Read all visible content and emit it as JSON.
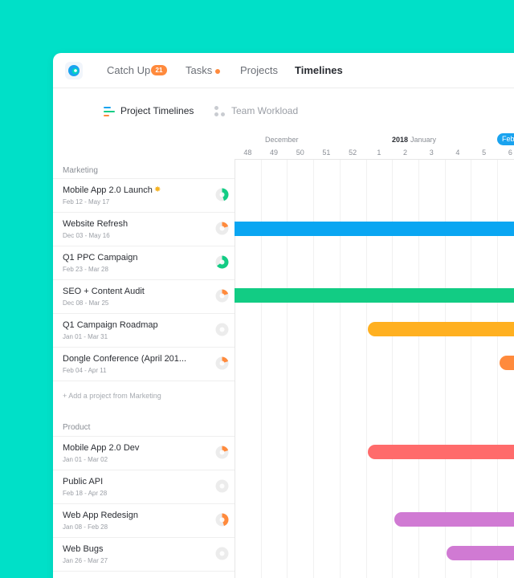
{
  "header": {
    "nav": [
      {
        "label": "Catch Up",
        "badge": "21"
      },
      {
        "label": "Tasks"
      },
      {
        "label": "Projects"
      },
      {
        "label": "Timelines"
      }
    ]
  },
  "view_tabs": {
    "project_timelines": "Project Timelines",
    "team_workload": "Team Workload"
  },
  "calendar": {
    "months": {
      "december": "December",
      "year": "2018",
      "january": "January",
      "february": "Febr"
    },
    "weeks": [
      "48",
      "49",
      "50",
      "51",
      "52",
      "1",
      "2",
      "3",
      "4",
      "5",
      "6"
    ]
  },
  "colors": {
    "accent": "#1aa3ef",
    "blue": "#0aa6f2",
    "green": "#12cc84",
    "yellow": "#ffb020",
    "orange": "#ff8a3c",
    "red": "#ff6b6b",
    "purple": "#d07ad3"
  },
  "sections": [
    {
      "title": "Marketing",
      "add_label": "+ Add a project from Marketing",
      "projects": [
        {
          "name": "Mobile App 2.0 Launch",
          "dates": "Feb 12 - May 17",
          "starred": true,
          "progress": 0.45,
          "progress_color": "#12cc84"
        },
        {
          "name": "Website Refresh",
          "dates": "Dec 03 - May 16",
          "progress": 0.2,
          "progress_color": "#ff8a3c"
        },
        {
          "name": "Q1 PPC Campaign",
          "dates": "Feb 23 - Mar 28",
          "progress": 0.65,
          "progress_color": "#12cc84"
        },
        {
          "name": "SEO + Content Audit",
          "dates": "Dec 08 - Mar 25",
          "progress": 0.2,
          "progress_color": "#ff8a3c"
        },
        {
          "name": "Q1 Campaign Roadmap",
          "dates": "Jan 01 - Mar 31",
          "progress": 0,
          "progress_color": "#ff8a3c"
        },
        {
          "name": "Dongle Conference (April 201...",
          "dates": "Feb 04 - Apr 11",
          "progress": 0.2,
          "progress_color": "#ff8a3c"
        }
      ]
    },
    {
      "title": "Product",
      "projects": [
        {
          "name": "Mobile App 2.0 Dev",
          "dates": "Jan 01 - Mar 02",
          "progress": 0.2,
          "progress_color": "#ff8a3c"
        },
        {
          "name": "Public API",
          "dates": "Feb 18 - Apr 28",
          "progress": 0,
          "progress_color": "#ff8a3c"
        },
        {
          "name": "Web App Redesign",
          "dates": "Jan 08 - Feb 28",
          "progress": 0.45,
          "progress_color": "#ff8a3c"
        },
        {
          "name": "Web Bugs",
          "dates": "Jan 26 - Mar 27",
          "progress": 0,
          "progress_color": "#ff8a3c"
        }
      ]
    }
  ]
}
